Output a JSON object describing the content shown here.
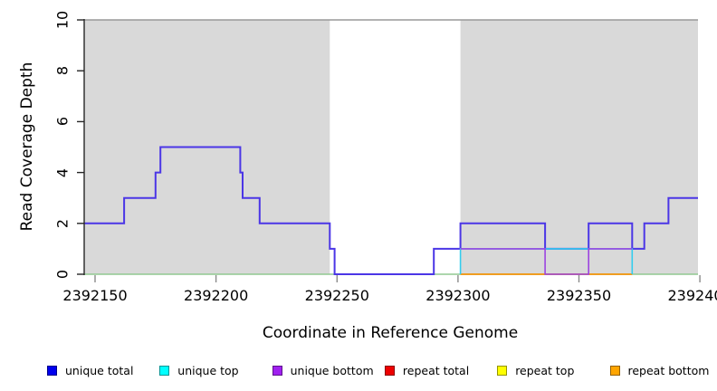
{
  "chart_data": {
    "type": "line",
    "subtype": "step",
    "title": "",
    "xlabel": "Coordinate in Reference Genome",
    "ylabel": "Read Coverage Depth",
    "xlim": [
      2392145.5,
      2392399.2
    ],
    "ylim": [
      0,
      10
    ],
    "xticks": [
      2392150,
      2392200,
      2392250,
      2392300,
      2392350,
      2392400
    ],
    "yticks": [
      0,
      2,
      4,
      6,
      8,
      10
    ],
    "grid": false,
    "legend_position": "bottom",
    "shaded_regions": {
      "color": "#d9d9d9",
      "ranges": [
        [
          2392145.5,
          2392247
        ],
        [
          2392301,
          2392399.2
        ]
      ]
    },
    "top_border_color": "#999999",
    "axis_color": "#262626",
    "xtick_color": "#8a8a8a",
    "series": [
      {
        "name": "repeat total",
        "legend_color": "#ee0000",
        "line_color": "#ee0000",
        "width": 1.4,
        "points": [
          [
            2392301,
            0
          ],
          [
            2392372,
            0
          ]
        ]
      },
      {
        "name": "repeat top",
        "legend_color": "#ffff00",
        "line_color": "#90c990",
        "width": 1.6,
        "points": [
          [
            2392145.5,
            0
          ],
          [
            2392399.2,
            0
          ]
        ]
      },
      {
        "name": "repeat bottom",
        "legend_color": "#ffa500",
        "line_color": "#ff9c00",
        "width": 1.6,
        "points": [
          [
            2392301,
            0
          ],
          [
            2392372,
            0
          ]
        ]
      },
      {
        "name": "unique total",
        "legend_color": "#0000ee",
        "line_color": "#4b36e6",
        "width": 2,
        "points": [
          [
            2392145.5,
            2
          ],
          [
            2392162,
            3
          ],
          [
            2392175,
            4
          ],
          [
            2392177,
            5
          ],
          [
            2392210,
            4
          ],
          [
            2392211,
            3
          ],
          [
            2392218,
            2
          ],
          [
            2392247,
            1
          ],
          [
            2392249,
            0
          ],
          [
            2392290,
            1
          ],
          [
            2392301,
            2
          ],
          [
            2392336,
            1
          ],
          [
            2392354,
            2
          ],
          [
            2392372,
            1
          ],
          [
            2392377,
            2
          ],
          [
            2392387,
            3
          ],
          [
            2392399.2,
            3
          ]
        ]
      },
      {
        "name": "unique top",
        "legend_color": "#00ffff",
        "line_color": "#33cdee",
        "width": 1.6,
        "points": [
          [
            2392301,
            0
          ],
          [
            2392301,
            1
          ],
          [
            2392372,
            0
          ]
        ]
      },
      {
        "name": "unique bottom",
        "legend_color": "#a020f0",
        "line_color": "#9c44e0",
        "width": 1.6,
        "points": [
          [
            2392301,
            1
          ],
          [
            2392336,
            0
          ],
          [
            2392354,
            1
          ],
          [
            2392372,
            1
          ]
        ]
      }
    ],
    "legend": [
      {
        "label": "unique total",
        "color": "#0000ee"
      },
      {
        "label": "unique top",
        "color": "#00ffff"
      },
      {
        "label": "unique bottom",
        "color": "#a020f0"
      },
      {
        "label": "repeat total",
        "color": "#ee0000"
      },
      {
        "label": "repeat top",
        "color": "#ffff00"
      },
      {
        "label": "repeat bottom",
        "color": "#ffa500"
      }
    ]
  }
}
